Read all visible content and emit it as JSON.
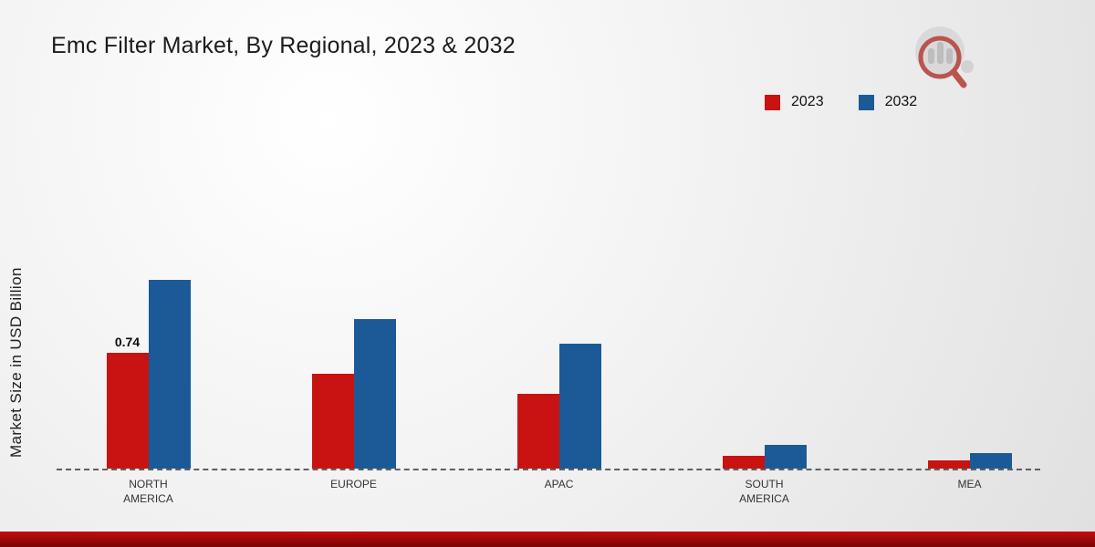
{
  "title": "Emc Filter Market, By Regional, 2023 & 2032",
  "y_axis_label": "Market Size in USD Billion",
  "legend": {
    "items": [
      {
        "label": "2023",
        "color": "#c91212"
      },
      {
        "label": "2032",
        "color": "#1b5a97"
      }
    ]
  },
  "icons": {
    "logo": "bar-chart-magnifier-logo"
  },
  "chart_data": {
    "type": "bar",
    "title": "Emc Filter Market, By Regional, 2023 & 2032",
    "categories": [
      "NORTH AMERICA",
      "EUROPE",
      "APAC",
      "SOUTH AMERICA",
      "MEA"
    ],
    "series": [
      {
        "name": "2023",
        "color": "#c91212",
        "values": [
          0.74,
          0.61,
          0.48,
          0.08,
          0.05
        ]
      },
      {
        "name": "2032",
        "color": "#1b5a97",
        "values": [
          1.21,
          0.96,
          0.8,
          0.15,
          0.1
        ]
      }
    ],
    "annotations": [
      {
        "category": "NORTH AMERICA",
        "series": "2023",
        "text": "0.74"
      }
    ],
    "xlabel": "",
    "ylabel": "Market Size in USD Billion",
    "ylim": [
      0,
      1.35
    ],
    "grid": false,
    "legend_position": "top-right",
    "baseline_style": "dashed"
  }
}
